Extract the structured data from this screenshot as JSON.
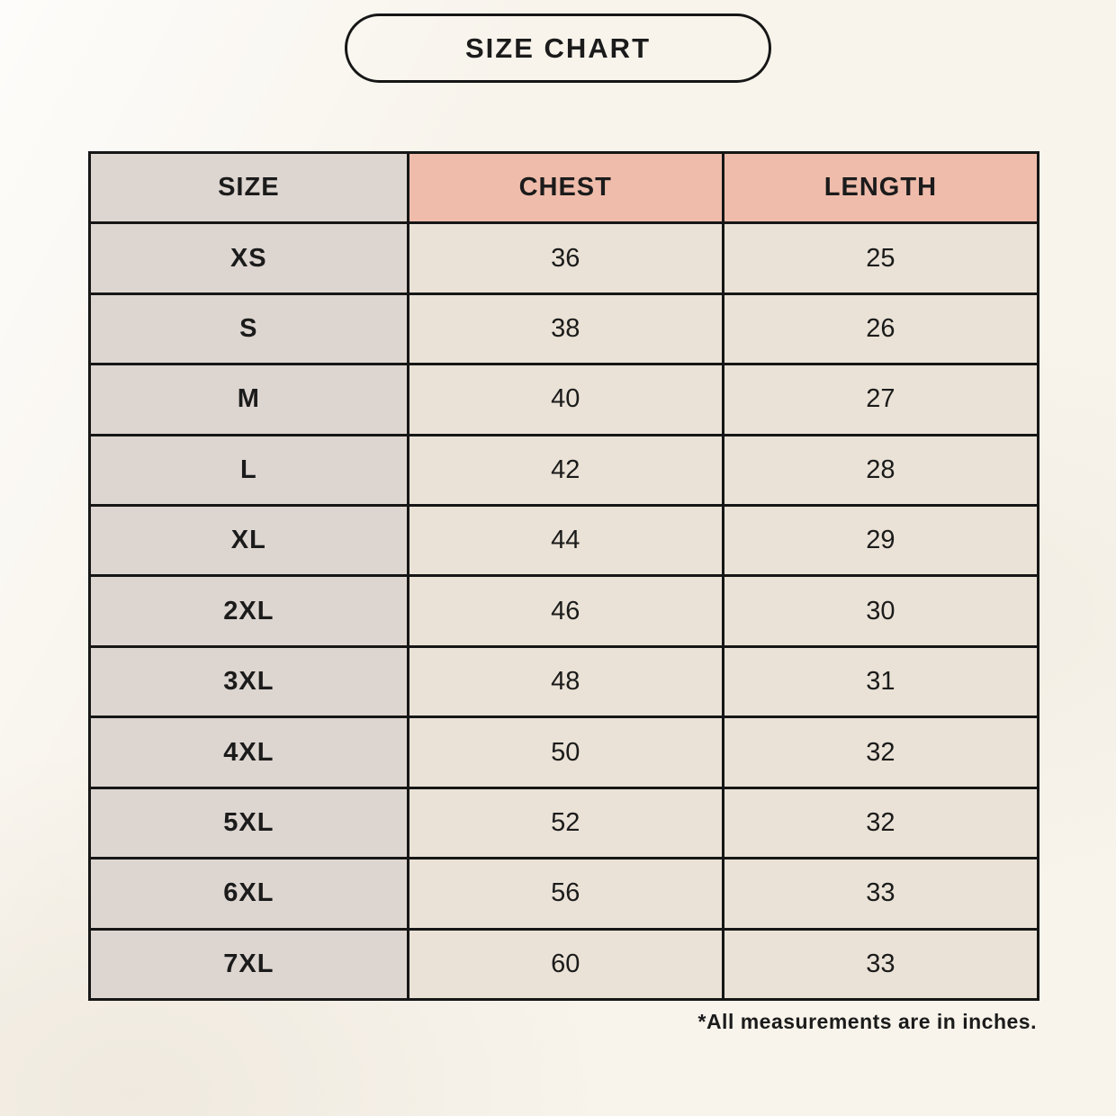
{
  "title": "SIZE CHART",
  "footnote": "*All measurements are in inches.",
  "colors": {
    "page-bg": "#f8f4ec",
    "header-pink": "#efbcab",
    "cell-gray": "#ddd5d0",
    "cell-cream": "#eae2d6",
    "border": "#161616",
    "text": "#1b1b1b"
  },
  "chart_data": {
    "type": "table",
    "title": "SIZE CHART",
    "columns": [
      "SIZE",
      "CHEST",
      "LENGTH"
    ],
    "units": "inches",
    "note": "*All measurements are in inches.",
    "rows": [
      {
        "size": "XS",
        "chest": 36,
        "length": 25
      },
      {
        "size": "S",
        "chest": 38,
        "length": 26
      },
      {
        "size": "M",
        "chest": 40,
        "length": 27
      },
      {
        "size": "L",
        "chest": 42,
        "length": 28
      },
      {
        "size": "XL",
        "chest": 44,
        "length": 29
      },
      {
        "size": "2XL",
        "chest": 46,
        "length": 30
      },
      {
        "size": "3XL",
        "chest": 48,
        "length": 31
      },
      {
        "size": "4XL",
        "chest": 50,
        "length": 32
      },
      {
        "size": "5XL",
        "chest": 52,
        "length": 32
      },
      {
        "size": "6XL",
        "chest": 56,
        "length": 33
      },
      {
        "size": "7XL",
        "chest": 60,
        "length": 33
      }
    ]
  }
}
